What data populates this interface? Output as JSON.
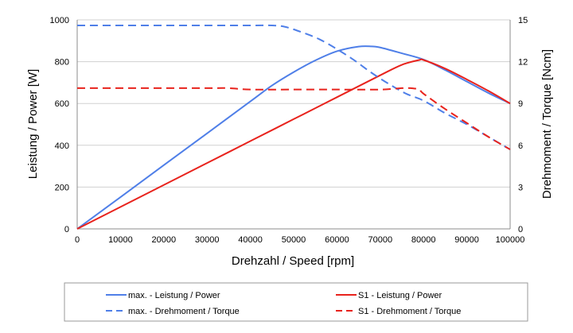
{
  "chart_data": {
    "type": "line",
    "title": "",
    "xlabel": "Drehzahl / Speed [rpm]",
    "ylabel": "Leistung / Power [W]",
    "y2label": "Drehmoment / Torque [Ncm]",
    "xlim": [
      0,
      100000
    ],
    "ylim": [
      0,
      1000
    ],
    "y2lim": [
      0,
      15
    ],
    "x_ticks": [
      "0",
      "10000",
      "20000",
      "30000",
      "40000",
      "50000",
      "60000",
      "70000",
      "80000",
      "90000",
      "100000"
    ],
    "y_ticks": [
      "0",
      "200",
      "400",
      "600",
      "800",
      "1000"
    ],
    "y2_ticks": [
      "0",
      "3",
      "6",
      "9",
      "12",
      "15"
    ],
    "grid": "horizontal",
    "legend_position": "bottom",
    "colors": {
      "max": "#4f7fe8",
      "s1": "#e8231d",
      "grid": "#d0d0d0"
    },
    "series": [
      {
        "name": "max. - Leistung / Power",
        "axis": "left",
        "dash": "solid",
        "color": "#4f7fe8",
        "x": [
          0,
          10000,
          20000,
          30000,
          40000,
          45000,
          50000,
          55000,
          60000,
          65000,
          68000,
          70000,
          75000,
          80000,
          85000,
          90000,
          95000,
          100000
        ],
        "y": [
          0,
          152,
          305,
          457,
          610,
          686,
          750,
          806,
          850,
          872,
          873,
          868,
          840,
          810,
          760,
          705,
          650,
          600
        ]
      },
      {
        "name": "S1 - Leistung / Power",
        "axis": "left",
        "dash": "solid",
        "color": "#e8231d",
        "x": [
          0,
          10000,
          20000,
          30000,
          40000,
          50000,
          60000,
          70000,
          75000,
          79000,
          80000,
          85000,
          90000,
          95000,
          100000
        ],
        "y": [
          0,
          105,
          210,
          315,
          420,
          525,
          630,
          735,
          785,
          808,
          808,
          767,
          715,
          660,
          600
        ]
      },
      {
        "name": "max. - Drehmoment / Torque",
        "axis": "right",
        "dash": "dashed",
        "color": "#4f7fe8",
        "x": [
          0,
          10000,
          20000,
          30000,
          40000,
          45000,
          48000,
          52000,
          56000,
          60000,
          64000,
          68000,
          72000,
          76000,
          80000,
          85000,
          90000,
          95000,
          100000
        ],
        "y": [
          14.6,
          14.6,
          14.6,
          14.6,
          14.6,
          14.6,
          14.5,
          14.1,
          13.6,
          12.9,
          12.1,
          11.2,
          10.4,
          9.7,
          9.2,
          8.3,
          7.5,
          6.6,
          5.7
        ]
      },
      {
        "name": "S1 - Drehmoment / Torque",
        "axis": "right",
        "dash": "dashed",
        "color": "#e8231d",
        "x": [
          0,
          10000,
          20000,
          30000,
          35000,
          40000,
          50000,
          60000,
          70000,
          75000,
          77000,
          79000,
          80000,
          85000,
          90000,
          95000,
          100000
        ],
        "y": [
          10.1,
          10.1,
          10.1,
          10.1,
          10.1,
          10.0,
          10.0,
          10.0,
          10.0,
          10.1,
          10.1,
          10.0,
          9.7,
          8.6,
          7.6,
          6.6,
          5.7
        ]
      }
    ]
  }
}
